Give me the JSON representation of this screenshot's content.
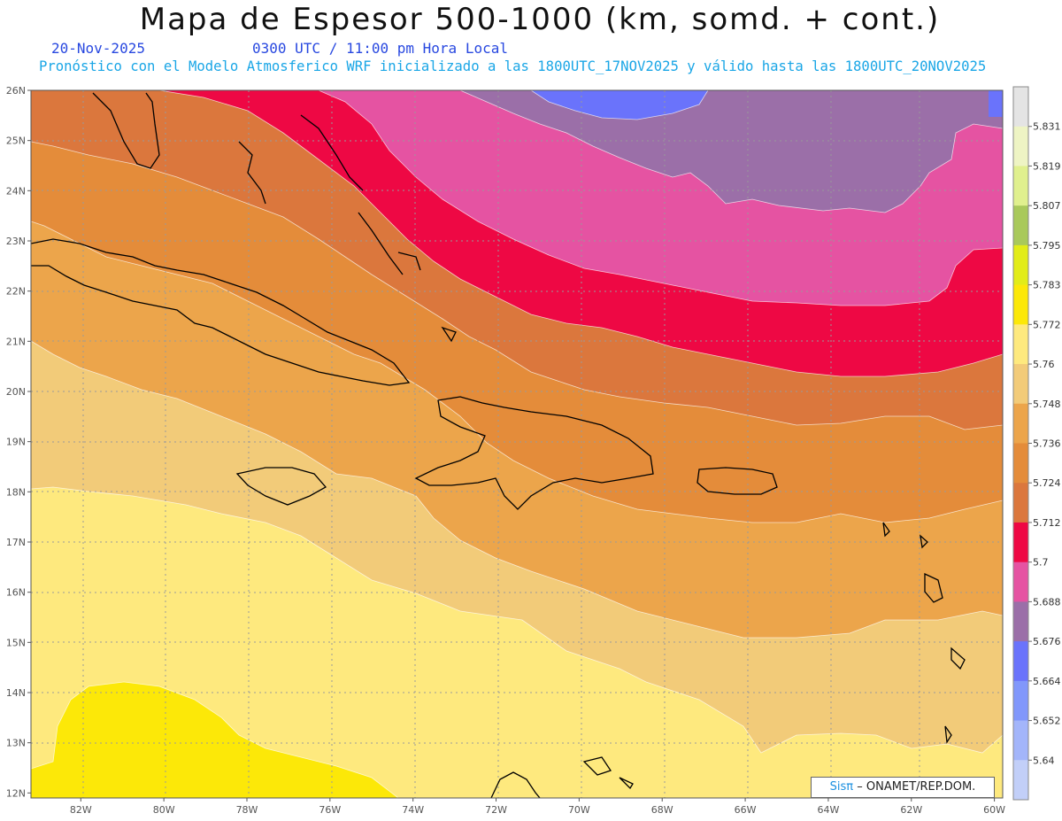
{
  "header": {
    "title": "Mapa de Espesor 500-1000 (km, somd. + cont.)",
    "date": "20-Nov-2025",
    "time": "0300 UTC / 11:00 pm Hora Local",
    "subtitle": "Pronóstico con el Modelo Atmosferico WRF inicializado a las 1800UTC_17NOV2025 y válido hasta las  1800UTC_20NOV2025"
  },
  "map": {
    "lon_ticks": [
      "82W",
      "80W",
      "78W",
      "76W",
      "74W",
      "72W",
      "70W",
      "68W",
      "66W",
      "64W",
      "62W",
      "60W"
    ],
    "lat_ticks": [
      "12N",
      "13N",
      "14N",
      "15N",
      "16N",
      "17N",
      "18N",
      "19N",
      "20N",
      "21N",
      "22N",
      "23N",
      "24N",
      "25N",
      "26N"
    ],
    "lon_range": [
      -83.2,
      -59.8
    ],
    "lat_range": [
      11.9,
      26.0
    ]
  },
  "colorbar": {
    "labels": [
      "5.64",
      "5.652",
      "5.664",
      "5.676",
      "5.688",
      "5.7",
      "5.712",
      "5.724",
      "5.736",
      "5.748",
      "5.76",
      "5.772",
      "5.783",
      "5.795",
      "5.807",
      "5.819",
      "5.831"
    ],
    "colors": [
      "#c2cff8",
      "#a3b5fa",
      "#8197fb",
      "#6a73fb",
      "#9b6fa8",
      "#e553a2",
      "#ee0844",
      "#db773d",
      "#e48c3a",
      "#eca54b",
      "#f2cb79",
      "#fee97e",
      "#fce808",
      "#e2ec18",
      "#a9c95b",
      "#e0f08e",
      "#eef4c4",
      "#e4e4e4"
    ]
  },
  "credit": {
    "brand": "Sisπ",
    "text": "– ONAMET/REP.DOM."
  },
  "fill_colors": {
    "yellow": "#fce808",
    "light_yellow": "#fee97e",
    "tan": "#f2cb79",
    "light_orange": "#eca54b",
    "orange": "#e48c3a",
    "dark_orange": "#db773d",
    "red": "#ee0844",
    "pink": "#e553a2",
    "purple": "#9b6fa8",
    "blue": "#6a73fb"
  }
}
